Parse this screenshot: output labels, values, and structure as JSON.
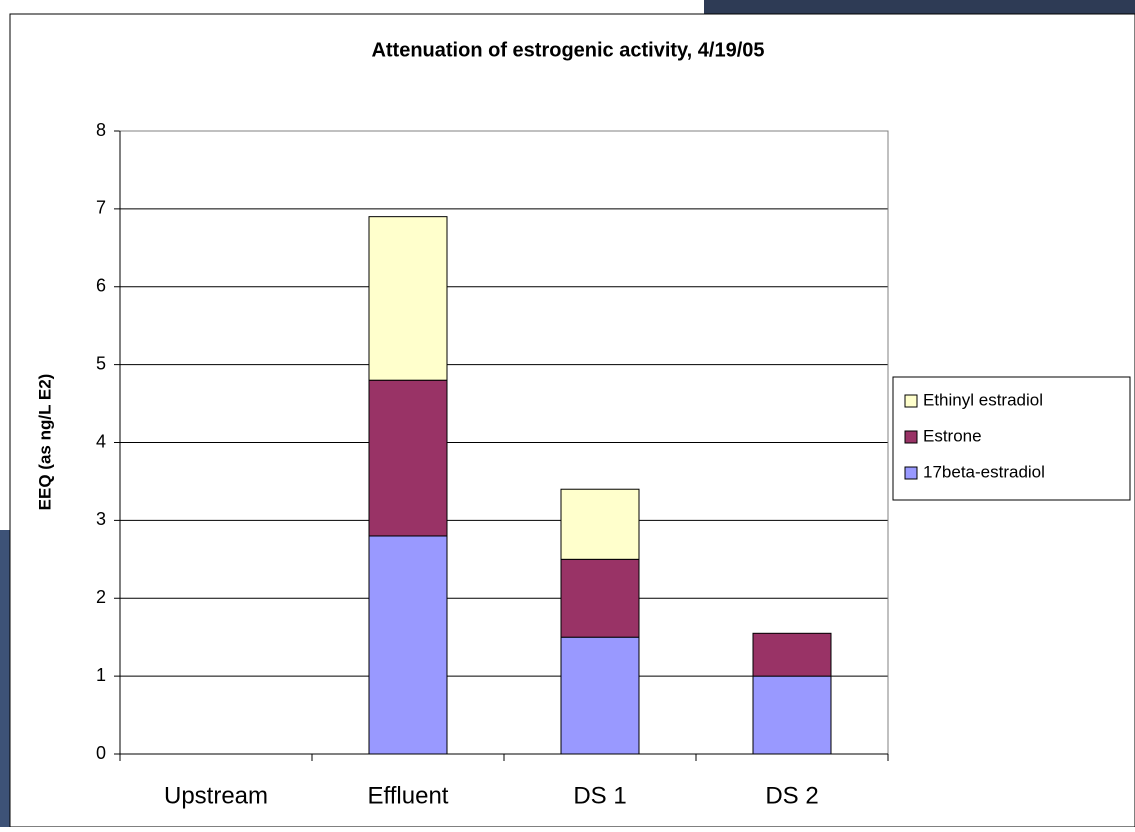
{
  "chart_data": {
    "type": "stacked-bar",
    "title": "Attenuation of estrogenic activity, 4/19/05",
    "y_label": "EEQ (as ng/L E2)",
    "categories": [
      "Upstream",
      "Effluent",
      "DS 1",
      "DS 2"
    ],
    "series": [
      {
        "name": "17beta-estradiol",
        "color": "#9999ff",
        "values": [
          0,
          2.8,
          1.5,
          1.0
        ]
      },
      {
        "name": "Estrone",
        "color": "#993366",
        "values": [
          0,
          2.0,
          1.0,
          0.55
        ]
      },
      {
        "name": "Ethinyl estradiol",
        "color": "#ffffcc",
        "values": [
          0,
          2.1,
          0.9,
          0
        ]
      }
    ],
    "ylim": [
      0,
      8
    ],
    "yticks": [
      0,
      1,
      2,
      3,
      4,
      5,
      6,
      7,
      8
    ],
    "grid": true,
    "legend": "right"
  }
}
